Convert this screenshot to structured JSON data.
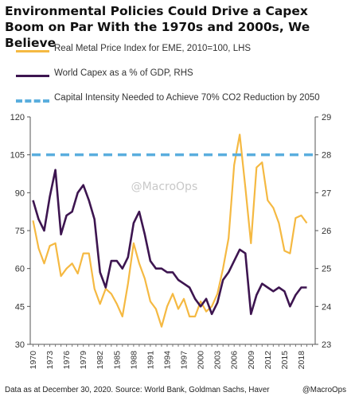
{
  "chart_data": {
    "type": "line",
    "title": "Environmental Policies Could Drive a Capex Boom on Par With the 1970s and 2000s, We Believe",
    "x_tick_labels": [
      "1970",
      "1973",
      "1976",
      "1979",
      "1982",
      "1985",
      "1988",
      "1991",
      "1994",
      "1997",
      "2000",
      "2003",
      "2006",
      "2009",
      "2012",
      "2015",
      "2018"
    ],
    "xlim": [
      1969.5,
      2020.5
    ],
    "ylim_left": [
      30,
      120
    ],
    "yticks_left": [
      "30",
      "45",
      "60",
      "75",
      "90",
      "105",
      "120"
    ],
    "ylim_right": [
      23,
      29
    ],
    "yticks_right": [
      "23",
      "24",
      "25",
      "26",
      "27",
      "28",
      "29"
    ],
    "grid": false,
    "legend_position": "top",
    "series": [
      {
        "name": "Real Metal Price Index for EME, 2010=100, LHS",
        "axis": "left",
        "color": "#f5b942",
        "points": [
          [
            1970,
            79
          ],
          [
            1971,
            68
          ],
          [
            1972,
            62
          ],
          [
            1973,
            69
          ],
          [
            1974,
            70
          ],
          [
            1975,
            57
          ],
          [
            1976,
            60
          ],
          [
            1977,
            62
          ],
          [
            1978,
            58
          ],
          [
            1979,
            66
          ],
          [
            1980,
            66
          ],
          [
            1981,
            52
          ],
          [
            1982,
            46
          ],
          [
            1983,
            52
          ],
          [
            1984,
            50
          ],
          [
            1985,
            46
          ],
          [
            1986,
            41
          ],
          [
            1987,
            54
          ],
          [
            1988,
            70
          ],
          [
            1989,
            62
          ],
          [
            1990,
            56
          ],
          [
            1991,
            47
          ],
          [
            1992,
            44
          ],
          [
            1993,
            37
          ],
          [
            1994,
            45
          ],
          [
            1995,
            50
          ],
          [
            1996,
            44
          ],
          [
            1997,
            48
          ],
          [
            1998,
            41
          ],
          [
            1999,
            41
          ],
          [
            2000,
            47
          ],
          [
            2001,
            43
          ],
          [
            2002,
            45
          ],
          [
            2003,
            50
          ],
          [
            2004,
            60
          ],
          [
            2005,
            72
          ],
          [
            2006,
            101
          ],
          [
            2007,
            113
          ],
          [
            2008,
            92
          ],
          [
            2009,
            70
          ],
          [
            2010,
            100
          ],
          [
            2011,
            102
          ],
          [
            2012,
            87
          ],
          [
            2013,
            84
          ],
          [
            2014,
            78
          ],
          [
            2015,
            67
          ],
          [
            2016,
            66
          ],
          [
            2017,
            80
          ],
          [
            2018,
            81
          ],
          [
            2019,
            78
          ]
        ]
      },
      {
        "name": "World Capex as a % of GDP, RHS",
        "axis": "right",
        "color": "#3d1550",
        "points": [
          [
            1970,
            26.8
          ],
          [
            1971,
            26.3
          ],
          [
            1972,
            26.0
          ],
          [
            1973,
            26.9
          ],
          [
            1974,
            27.6
          ],
          [
            1975,
            25.9
          ],
          [
            1976,
            26.4
          ],
          [
            1977,
            26.5
          ],
          [
            1978,
            27.0
          ],
          [
            1979,
            27.2
          ],
          [
            1980,
            26.8
          ],
          [
            1981,
            26.3
          ],
          [
            1982,
            24.9
          ],
          [
            1983,
            24.5
          ],
          [
            1984,
            25.2
          ],
          [
            1985,
            25.2
          ],
          [
            1986,
            25.0
          ],
          [
            1987,
            25.3
          ],
          [
            1988,
            26.2
          ],
          [
            1989,
            26.5
          ],
          [
            1990,
            25.9
          ],
          [
            1991,
            25.2
          ],
          [
            1992,
            25.0
          ],
          [
            1993,
            25.0
          ],
          [
            1994,
            24.9
          ],
          [
            1995,
            24.9
          ],
          [
            1996,
            24.7
          ],
          [
            1997,
            24.6
          ],
          [
            1998,
            24.5
          ],
          [
            1999,
            24.2
          ],
          [
            2000,
            24.0
          ],
          [
            2001,
            24.2
          ],
          [
            2002,
            23.8
          ],
          [
            2003,
            24.1
          ],
          [
            2004,
            24.7
          ],
          [
            2005,
            24.9
          ],
          [
            2006,
            25.2
          ],
          [
            2007,
            25.5
          ],
          [
            2008,
            25.4
          ],
          [
            2009,
            23.8
          ],
          [
            2010,
            24.3
          ],
          [
            2011,
            24.6
          ],
          [
            2012,
            24.5
          ],
          [
            2013,
            24.4
          ],
          [
            2014,
            24.5
          ],
          [
            2015,
            24.4
          ],
          [
            2016,
            24.0
          ],
          [
            2017,
            24.3
          ],
          [
            2018,
            24.5
          ],
          [
            2019,
            24.5
          ]
        ]
      },
      {
        "name": "Capital Intensity Needed to Achieve 70% CO2 Reduction by 2050",
        "axis": "right",
        "color": "#5aaede",
        "style": "dashed",
        "value": 28
      }
    ],
    "watermark": "@MacroOps"
  },
  "footer": {
    "source": "Data as at December 30, 2020. Source: World Bank, Goldman Sachs, Haver",
    "handle": "@MacroOps"
  }
}
